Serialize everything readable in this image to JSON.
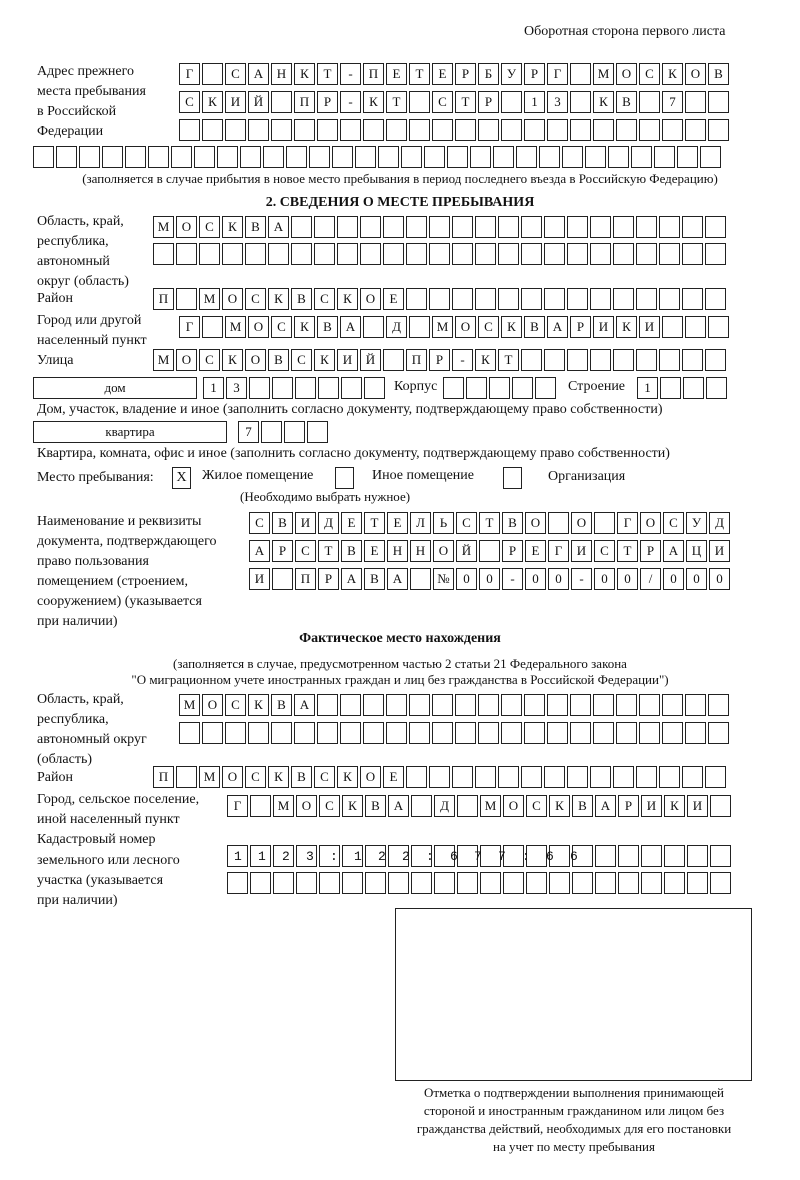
{
  "header": {
    "page_side": "Оборотная сторона первого листа"
  },
  "previous_address": {
    "label": "Адрес прежнего места пребывания в Российской Федерации",
    "label_lines": [
      "Адрес прежнего",
      "места пребывания",
      "в Российской",
      "Федерации"
    ],
    "rows": [
      "Г САНКТ-ПЕТЕРБУРГ МОСКОВ",
      "СКИЙ ПР-КТ СТР 13 КВ 7",
      "",
      ""
    ],
    "note": "(заполняется в случае прибытия в новое место пребывания в период последнего въезда в Российскую Федерацию)"
  },
  "section2": {
    "title": "2. СВЕДЕНИЯ О МЕСТЕ ПРЕБЫВАНИЯ",
    "region_label_lines": [
      "Область, край,",
      "республика,",
      "автономный",
      "округ (область)"
    ],
    "region_rows": [
      "МОСКВА",
      ""
    ],
    "district_label": "Район",
    "district": "П МОСКВСКОЕ",
    "city_label_lines": [
      "Город или другой",
      "населенный пункт"
    ],
    "city": "Г МОСКВА Д МОСКВАРИКИ",
    "street_label": "Улица",
    "street": "МОСКОВСКИЙ ПР-КТ",
    "house_type": "дом",
    "house_number": "13",
    "korpus_label": "Корпус",
    "korpus": "",
    "stroenie_label": "Строение",
    "stroenie": "1",
    "house_note": "Дом, участок, владение и иное (заполнить согласно документу, подтверждающему право собственности)",
    "apartment_type": "квартира",
    "apartment_number": "7",
    "apartment_note": "Квартира, комната, офис и иное (заполнить согласно документу, подтверждающему право собственности)",
    "stay_place_label": "Место пребывания:",
    "options": [
      {
        "label": "Жилое помещение",
        "mark": "Х",
        "checked": true
      },
      {
        "label": "Иное помещение",
        "mark": "",
        "checked": false
      },
      {
        "label": "Организация",
        "mark": "",
        "checked": false
      }
    ],
    "choose_note": "(Необходимо выбрать нужное)",
    "doc_label_lines": [
      "Наименование и реквизиты",
      "документа, подтверждающего",
      "право пользования",
      "помещением (строением,",
      "сооружением) (указывается",
      "при наличии)"
    ],
    "doc_rows": [
      "СВИДЕТЕЛЬСТВО О ГОСУД",
      "АРСТВЕННОЙ РЕГИСТРАЦИ",
      "И ПРАВА №00-00-00/000"
    ]
  },
  "actual": {
    "title": "Фактическое место нахождения",
    "note_lines": [
      "(заполняется в случае, предусмотренном частью 2 статьи 21 Федерального закона",
      "\"О миграционном учете иностранных граждан и лиц без гражданства в Российской Федерации\")"
    ],
    "region_label_lines": [
      "Область, край,",
      "республика,",
      "автономный округ",
      "(область)"
    ],
    "region_rows": [
      "МОСКВА",
      ""
    ],
    "district_label": "Район",
    "district": "П МОСКВСКОЕ",
    "city_label_lines": [
      "Город, сельское поселение,",
      "иной населенный пункт"
    ],
    "city": "Г МОСКВА Д МОСКВАРИКИ",
    "cadastral_label_lines": [
      "Кадастровый номер",
      "земельного или лесного",
      "участка (указывается",
      "при наличии)"
    ],
    "cadastral_rows": [
      "1123:122:677:66",
      ""
    ]
  },
  "stamp": {
    "caption_lines": [
      "Отметка о подтверждении выполнения принимающей",
      "стороной и иностранным гражданином или лицом без",
      "гражданства действий, необходимых для его постановки",
      "на учет по месту пребывания"
    ]
  }
}
